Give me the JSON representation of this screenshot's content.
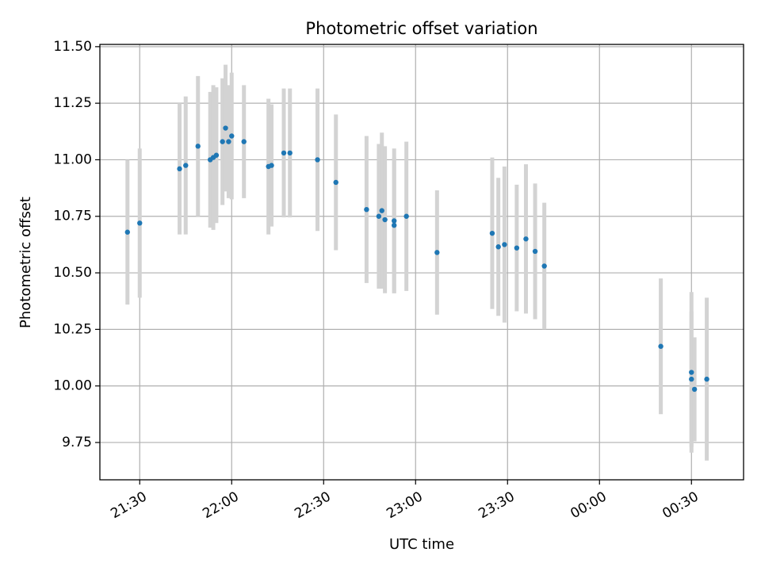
{
  "chart_data": {
    "type": "scatter",
    "title": "Photometric offset variation",
    "xlabel": "UTC time",
    "ylabel": "Photometric offset",
    "grid": true,
    "xlim": [
      "21:17",
      "00:47"
    ],
    "ylim": [
      9.585,
      11.51
    ],
    "x_ticks": [
      "21:30",
      "22:00",
      "22:30",
      "23:00",
      "23:30",
      "00:00",
      "00:30"
    ],
    "y_ticks": [
      "9.75",
      "10.00",
      "10.25",
      "10.50",
      "10.75",
      "11.00",
      "11.25",
      "11.50"
    ],
    "colors": {
      "point": "#1f77b4",
      "error_bar": "#d3d3d3",
      "grid": "#b0b0b0"
    },
    "series": [
      {
        "points": [
          {
            "x": "21:26",
            "y": 10.68,
            "err": 0.32
          },
          {
            "x": "21:30",
            "y": 10.72,
            "err": 0.33
          },
          {
            "x": "21:43",
            "y": 10.96,
            "err": 0.29
          },
          {
            "x": "21:45",
            "y": 10.975,
            "err": 0.305
          },
          {
            "x": "21:49",
            "y": 11.06,
            "err": 0.31
          },
          {
            "x": "21:53",
            "y": 11.0,
            "err": 0.3
          },
          {
            "x": "21:54",
            "y": 11.01,
            "err": 0.32
          },
          {
            "x": "21:55",
            "y": 11.02,
            "err": 0.3
          },
          {
            "x": "21:57",
            "y": 11.08,
            "err": 0.28
          },
          {
            "x": "21:58",
            "y": 11.14,
            "err": 0.28
          },
          {
            "x": "21:59",
            "y": 11.08,
            "err": 0.25
          },
          {
            "x": "22:00",
            "y": 11.105,
            "err": 0.28
          },
          {
            "x": "22:04",
            "y": 11.08,
            "err": 0.25
          },
          {
            "x": "22:12",
            "y": 10.97,
            "err": 0.3
          },
          {
            "x": "22:13",
            "y": 10.975,
            "err": 0.27
          },
          {
            "x": "22:17",
            "y": 11.03,
            "err": 0.285
          },
          {
            "x": "22:19",
            "y": 11.03,
            "err": 0.285
          },
          {
            "x": "22:28",
            "y": 11.0,
            "err": 0.315
          },
          {
            "x": "22:34",
            "y": 10.9,
            "err": 0.3
          },
          {
            "x": "22:44",
            "y": 10.78,
            "err": 0.325
          },
          {
            "x": "22:48",
            "y": 10.75,
            "err": 0.32
          },
          {
            "x": "22:49",
            "y": 10.775,
            "err": 0.345
          },
          {
            "x": "22:50",
            "y": 10.735,
            "err": 0.325
          },
          {
            "x": "22:53",
            "y": 10.71,
            "err": 0.3
          },
          {
            "x": "22:53",
            "y": 10.73,
            "err": 0.32
          },
          {
            "x": "22:57",
            "y": 10.75,
            "err": 0.33
          },
          {
            "x": "23:07",
            "y": 10.59,
            "err": 0.275
          },
          {
            "x": "23:25",
            "y": 10.675,
            "err": 0.335
          },
          {
            "x": "23:27",
            "y": 10.615,
            "err": 0.305
          },
          {
            "x": "23:29",
            "y": 10.625,
            "err": 0.345
          },
          {
            "x": "23:33",
            "y": 10.61,
            "err": 0.28
          },
          {
            "x": "23:36",
            "y": 10.65,
            "err": 0.33
          },
          {
            "x": "23:39",
            "y": 10.595,
            "err": 0.3
          },
          {
            "x": "23:42",
            "y": 10.53,
            "err": 0.28
          },
          {
            "x": "00:20",
            "y": 10.175,
            "err": 0.3
          },
          {
            "x": "00:30",
            "y": 10.03,
            "err": 0.3
          },
          {
            "x": "00:30",
            "y": 10.06,
            "err": 0.355
          },
          {
            "x": "00:31",
            "y": 9.985,
            "err": 0.23
          },
          {
            "x": "00:35",
            "y": 10.03,
            "err": 0.36
          }
        ]
      }
    ]
  }
}
